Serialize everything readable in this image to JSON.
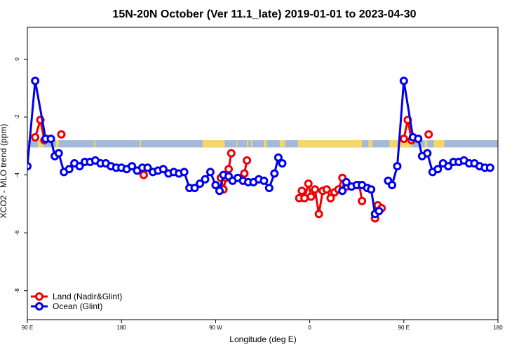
{
  "chart_data": {
    "type": "line",
    "title": "15N-20N October (Ver 11.1_late)   2019-01-01 to 2023-04-30",
    "xlabel": "Longitude (deg E)",
    "ylabel": "XCO2 - MLO trend (ppm)",
    "xlim": [
      90,
      450
    ],
    "ylim": [
      -9,
      1.1
    ],
    "x_ticks": [
      {
        "value": 90,
        "label": "90 E"
      },
      {
        "value": 162,
        "label": "180"
      },
      {
        "value": 234,
        "label": "90 W"
      },
      {
        "value": 306,
        "label": "0"
      },
      {
        "value": 378,
        "label": "90 E"
      },
      {
        "value": 450,
        "label": "180"
      }
    ],
    "y_ticks": [
      {
        "value": 0,
        "label": "0"
      },
      {
        "value": -2,
        "label": "-2"
      },
      {
        "value": -4,
        "label": "-4"
      },
      {
        "value": -6,
        "label": "-6"
      },
      {
        "value": -8,
        "label": "-8"
      }
    ],
    "grid": false,
    "legend_position": "bottom-left",
    "land_band": {
      "y_top": -2.8,
      "y_bottom": -3.05,
      "ocean_color": "#a3b9da",
      "land_color": "#f6d66a"
    },
    "land_mask_ranges": [
      [
        98,
        102
      ],
      [
        112,
        114
      ],
      [
        141,
        142
      ],
      [
        176,
        177
      ],
      [
        224,
        241
      ],
      [
        250,
        250.5
      ],
      [
        258,
        259
      ],
      [
        261,
        262
      ],
      [
        271,
        273
      ],
      [
        283,
        287
      ],
      [
        297,
        346
      ],
      [
        351,
        354
      ],
      [
        367,
        384
      ],
      [
        394,
        396
      ],
      [
        401,
        409
      ]
    ],
    "series": [
      {
        "name": "Land (Nadir&Glint)",
        "color": "#ee0000",
        "segments": [
          [
            [
              96,
              -2.7
            ],
            [
              100,
              -2.1
            ],
            [
              103,
              -2.8
            ]
          ],
          [
            [
              116,
              -2.6
            ]
          ],
          [
            [
              179,
              -4.0
            ]
          ],
          [
            [
              238,
              -4.1
            ],
            [
              240,
              -4.5
            ],
            [
              242,
              -4.1
            ],
            [
              244,
              -3.8
            ],
            [
              246,
              -3.25
            ]
          ],
          [
            [
              254,
              -4.1
            ],
            [
              256,
              -3.95
            ],
            [
              258,
              -3.5
            ]
          ],
          [
            [
              298,
              -4.8
            ],
            [
              300,
              -4.55
            ],
            [
              302,
              -4.8
            ],
            [
              305,
              -4.3
            ],
            [
              307,
              -4.75
            ],
            [
              310,
              -4.5
            ],
            [
              313,
              -5.35
            ],
            [
              316,
              -4.55
            ],
            [
              319,
              -4.5
            ],
            [
              322,
              -4.8
            ],
            [
              325,
              -4.6
            ],
            [
              328,
              -4.5
            ],
            [
              331,
              -4.1
            ],
            [
              334,
              -4.4
            ]
          ],
          [
            [
              344,
              -4.35
            ],
            [
              346,
              -4.9
            ]
          ],
          [
            [
              356,
              -5.5
            ],
            [
              358,
              -5.05
            ],
            [
              361,
              -5.15
            ]
          ],
          [
            [
              378,
              -2.75
            ],
            [
              381,
              -2.1
            ],
            [
              384,
              -2.8
            ]
          ],
          [
            [
              397,
              -2.6
            ]
          ]
        ]
      },
      {
        "name": "Ocean (Glint)",
        "color": "#0000ee",
        "segments": [
          [
            [
              90,
              -3.7
            ],
            [
              96,
              -0.75
            ],
            [
              104,
              -2.75
            ],
            [
              108,
              -2.75
            ],
            [
              111,
              -3.35
            ],
            [
              114,
              -3.25
            ],
            [
              118,
              -3.9
            ],
            [
              122,
              -3.8
            ],
            [
              126,
              -3.6
            ],
            [
              130,
              -3.7
            ],
            [
              134,
              -3.55
            ],
            [
              138,
              -3.55
            ],
            [
              142,
              -3.5
            ],
            [
              146,
              -3.6
            ],
            [
              150,
              -3.6
            ],
            [
              154,
              -3.7
            ],
            [
              158,
              -3.75
            ],
            [
              162,
              -3.75
            ],
            [
              166,
              -3.8
            ],
            [
              170,
              -3.7
            ],
            [
              174,
              -3.85
            ],
            [
              178,
              -3.75
            ],
            [
              182,
              -3.75
            ],
            [
              186,
              -3.9
            ],
            [
              190,
              -3.85
            ],
            [
              194,
              -3.8
            ],
            [
              198,
              -3.95
            ],
            [
              202,
              -3.9
            ],
            [
              206,
              -3.95
            ],
            [
              210,
              -3.9
            ],
            [
              214,
              -4.45
            ],
            [
              218,
              -4.45
            ],
            [
              222,
              -4.3
            ],
            [
              226,
              -4.15
            ],
            [
              230,
              -3.9
            ],
            [
              234,
              -4.35
            ],
            [
              237,
              -4.55
            ],
            [
              240,
              -4.0
            ],
            [
              244,
              -4.05
            ],
            [
              247,
              -4.2
            ],
            [
              251,
              -4.1
            ],
            [
              255,
              -4.2
            ],
            [
              259,
              -4.25
            ],
            [
              263,
              -4.25
            ],
            [
              267,
              -4.15
            ],
            [
              271,
              -4.2
            ],
            [
              275,
              -4.45
            ],
            [
              279,
              -3.95
            ],
            [
              282,
              -3.4
            ],
            [
              285,
              -3.6
            ]
          ],
          [
            [
              331,
              -4.55
            ],
            [
              334,
              -4.25
            ]
          ],
          [
            [
              338,
              -4.4
            ],
            [
              342,
              -4.35
            ],
            [
              346,
              -4.35
            ],
            [
              350,
              -4.45
            ],
            [
              353,
              -4.5
            ],
            [
              356,
              -5.35
            ],
            [
              359,
              -5.25
            ]
          ],
          [
            [
              366,
              -4.2
            ],
            [
              369,
              -4.35
            ],
            [
              373,
              -3.7
            ],
            [
              378,
              -0.75
            ],
            [
              385,
              -2.7
            ],
            [
              389,
              -2.75
            ],
            [
              392,
              -3.35
            ],
            [
              396,
              -3.25
            ],
            [
              400,
              -3.9
            ],
            [
              404,
              -3.8
            ],
            [
              408,
              -3.6
            ],
            [
              412,
              -3.7
            ],
            [
              416,
              -3.55
            ],
            [
              420,
              -3.55
            ],
            [
              424,
              -3.5
            ],
            [
              428,
              -3.6
            ],
            [
              432,
              -3.6
            ],
            [
              436,
              -3.7
            ],
            [
              440,
              -3.75
            ],
            [
              444,
              -3.75
            ]
          ]
        ]
      }
    ]
  }
}
